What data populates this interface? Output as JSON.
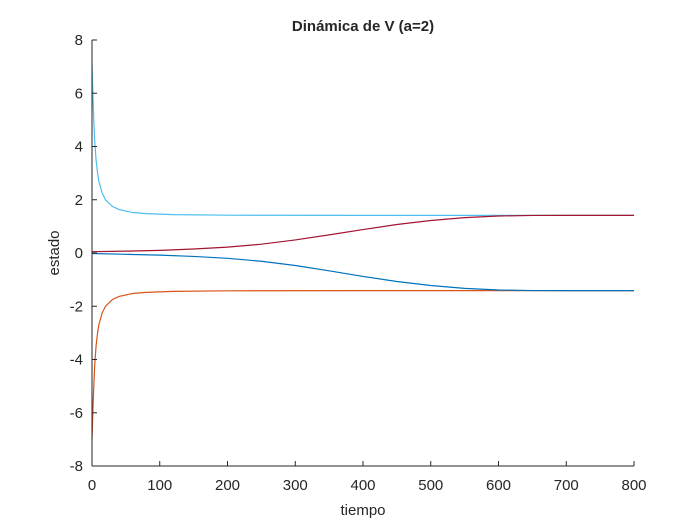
{
  "chart_data": {
    "type": "line",
    "title": "Dinámica de V (a=2)",
    "xlabel": "tiempo",
    "ylabel": "estado",
    "xlim": [
      0,
      800
    ],
    "ylim": [
      -8,
      8
    ],
    "xticks": [
      0,
      100,
      200,
      300,
      400,
      500,
      600,
      700,
      800
    ],
    "yticks": [
      -8,
      -6,
      -4,
      -2,
      0,
      2,
      4,
      6,
      8
    ],
    "grid": false,
    "legend": "none",
    "series": [
      {
        "color": "#4DBEEE",
        "points": [
          [
            0,
            7.1
          ],
          [
            2,
            5.4
          ],
          [
            4,
            4.2
          ],
          [
            6,
            3.5
          ],
          [
            8,
            3.05
          ],
          [
            10,
            2.7
          ],
          [
            15,
            2.25
          ],
          [
            20,
            2.0
          ],
          [
            30,
            1.75
          ],
          [
            40,
            1.63
          ],
          [
            60,
            1.52
          ],
          [
            80,
            1.48
          ],
          [
            120,
            1.44
          ],
          [
            200,
            1.42
          ],
          [
            400,
            1.414
          ],
          [
            600,
            1.414
          ],
          [
            800,
            1.414
          ]
        ]
      },
      {
        "color": "#D95319",
        "points": [
          [
            0,
            -7.0
          ],
          [
            2,
            -5.4
          ],
          [
            4,
            -4.2
          ],
          [
            6,
            -3.5
          ],
          [
            8,
            -3.05
          ],
          [
            10,
            -2.7
          ],
          [
            15,
            -2.25
          ],
          [
            20,
            -2.0
          ],
          [
            30,
            -1.75
          ],
          [
            40,
            -1.63
          ],
          [
            60,
            -1.52
          ],
          [
            80,
            -1.48
          ],
          [
            120,
            -1.44
          ],
          [
            200,
            -1.42
          ],
          [
            400,
            -1.414
          ],
          [
            600,
            -1.414
          ],
          [
            800,
            -1.414
          ]
        ]
      },
      {
        "color": "#A2142F",
        "points": [
          [
            0,
            0.05
          ],
          [
            50,
            0.07
          ],
          [
            100,
            0.1
          ],
          [
            150,
            0.15
          ],
          [
            200,
            0.22
          ],
          [
            250,
            0.33
          ],
          [
            300,
            0.49
          ],
          [
            350,
            0.68
          ],
          [
            400,
            0.88
          ],
          [
            450,
            1.07
          ],
          [
            500,
            1.22
          ],
          [
            550,
            1.33
          ],
          [
            600,
            1.39
          ],
          [
            650,
            1.41
          ],
          [
            700,
            1.414
          ],
          [
            800,
            1.414
          ]
        ]
      },
      {
        "color": "#0072BD",
        "points": [
          [
            0,
            -0.02
          ],
          [
            50,
            -0.05
          ],
          [
            100,
            -0.08
          ],
          [
            150,
            -0.13
          ],
          [
            200,
            -0.2
          ],
          [
            250,
            -0.31
          ],
          [
            300,
            -0.47
          ],
          [
            350,
            -0.67
          ],
          [
            400,
            -0.88
          ],
          [
            450,
            -1.07
          ],
          [
            500,
            -1.22
          ],
          [
            550,
            -1.33
          ],
          [
            600,
            -1.39
          ],
          [
            650,
            -1.41
          ],
          [
            700,
            -1.414
          ],
          [
            800,
            -1.414
          ]
        ]
      }
    ]
  }
}
